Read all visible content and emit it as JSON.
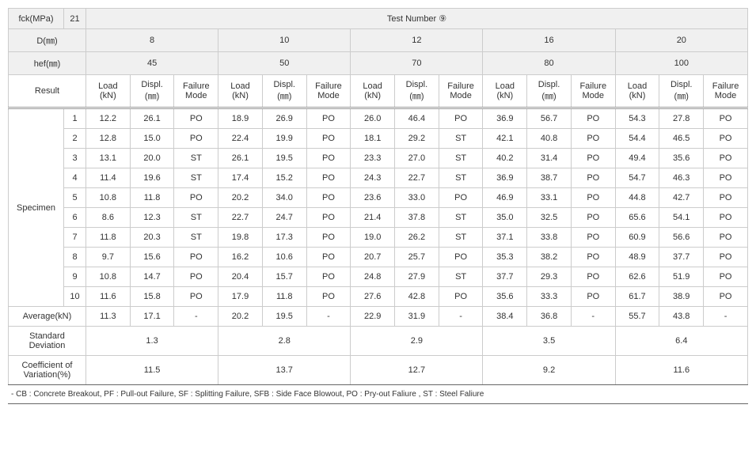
{
  "header": {
    "fck_label": "fck(MPa)",
    "fck_value": "21",
    "test_number_label": "Test Number ⑨",
    "D_label": "D(㎜)",
    "D_values": [
      "8",
      "10",
      "12",
      "16",
      "20"
    ],
    "hef_label": "hef(㎜)",
    "hef_values": [
      "45",
      "50",
      "70",
      "80",
      "100"
    ],
    "result_label": "Result",
    "sub_cols": [
      "Load\n(kN)",
      "Displ.\n(㎜)",
      "Failure\nMode"
    ]
  },
  "specimen_label": "Specimen",
  "rows": [
    {
      "idx": "1",
      "cells": [
        "12.2",
        "26.1",
        "PO",
        "18.9",
        "26.9",
        "PO",
        "26.0",
        "46.4",
        "PO",
        "36.9",
        "56.7",
        "PO",
        "54.3",
        "27.8",
        "PO"
      ]
    },
    {
      "idx": "2",
      "cells": [
        "12.8",
        "15.0",
        "PO",
        "22.4",
        "19.9",
        "PO",
        "18.1",
        "29.2",
        "ST",
        "42.1",
        "40.8",
        "PO",
        "54.4",
        "46.5",
        "PO"
      ]
    },
    {
      "idx": "3",
      "cells": [
        "13.1",
        "20.0",
        "ST",
        "26.1",
        "19.5",
        "PO",
        "23.3",
        "27.0",
        "ST",
        "40.2",
        "31.4",
        "PO",
        "49.4",
        "35.6",
        "PO"
      ]
    },
    {
      "idx": "4",
      "cells": [
        "11.4",
        "19.6",
        "ST",
        "17.4",
        "15.2",
        "PO",
        "24.3",
        "22.7",
        "ST",
        "36.9",
        "38.7",
        "PO",
        "54.7",
        "46.3",
        "PO"
      ]
    },
    {
      "idx": "5",
      "cells": [
        "10.8",
        "11.8",
        "PO",
        "20.2",
        "34.0",
        "PO",
        "23.6",
        "33.0",
        "PO",
        "46.9",
        "33.1",
        "PO",
        "44.8",
        "42.7",
        "PO"
      ]
    },
    {
      "idx": "6",
      "cells": [
        "8.6",
        "12.3",
        "ST",
        "22.7",
        "24.7",
        "PO",
        "21.4",
        "37.8",
        "ST",
        "35.0",
        "32.5",
        "PO",
        "65.6",
        "54.1",
        "PO"
      ]
    },
    {
      "idx": "7",
      "cells": [
        "11.8",
        "20.3",
        "ST",
        "19.8",
        "17.3",
        "PO",
        "19.0",
        "26.2",
        "ST",
        "37.1",
        "33.8",
        "PO",
        "60.9",
        "56.6",
        "PO"
      ]
    },
    {
      "idx": "8",
      "cells": [
        "9.7",
        "15.6",
        "PO",
        "16.2",
        "10.6",
        "PO",
        "20.7",
        "25.7",
        "PO",
        "35.3",
        "38.2",
        "PO",
        "48.9",
        "37.7",
        "PO"
      ]
    },
    {
      "idx": "9",
      "cells": [
        "10.8",
        "14.7",
        "PO",
        "20.4",
        "15.7",
        "PO",
        "24.8",
        "27.9",
        "ST",
        "37.7",
        "29.3",
        "PO",
        "62.6",
        "51.9",
        "PO"
      ]
    },
    {
      "idx": "10",
      "cells": [
        "11.6",
        "15.8",
        "PO",
        "17.9",
        "11.8",
        "PO",
        "27.6",
        "42.8",
        "PO",
        "35.6",
        "33.3",
        "PO",
        "61.7",
        "38.9",
        "PO"
      ]
    }
  ],
  "average_label": "Average(kN)",
  "average": [
    "11.3",
    "17.1",
    "-",
    "20.2",
    "19.5",
    "-",
    "22.9",
    "31.9",
    "-",
    "38.4",
    "36.8",
    "-",
    "55.7",
    "43.8",
    "-"
  ],
  "std_label": "Standard\nDeviation",
  "std": [
    "1.3",
    "2.8",
    "2.9",
    "3.5",
    "6.4"
  ],
  "cov_label": "Coefficient of\nVariation(%)",
  "cov": [
    "11.5",
    "13.7",
    "12.7",
    "9.2",
    "11.6"
  ],
  "footnote": "- CB : Concrete Breakout, PF : Pull-out Failure, SF : Splitting Failure, SFB : Side Face Blowout, PO : Pry-out Faliure , ST : Steel Faliure"
}
